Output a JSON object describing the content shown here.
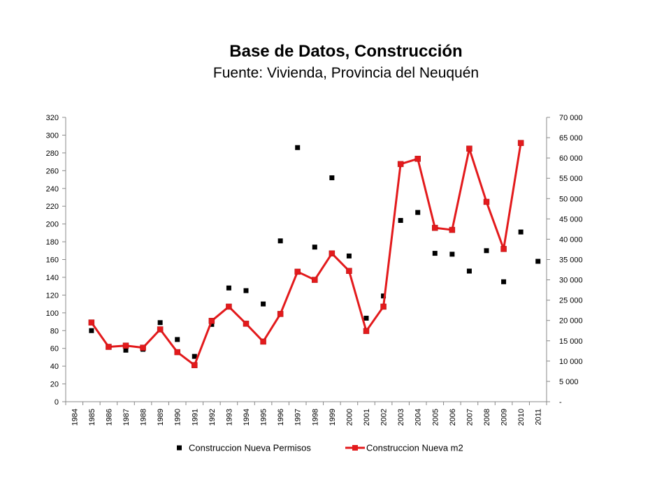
{
  "chart_data": {
    "type": "line",
    "title": "Base de Datos, Construcción",
    "subtitle": "Fuente: Vivienda, Provincia del Neuquén",
    "categories": [
      "1984",
      "1985",
      "1986",
      "1987",
      "1988",
      "1989",
      "1990",
      "1991",
      "1992",
      "1993",
      "1994",
      "1995",
      "1996",
      "1997",
      "1998",
      "1999",
      "2000",
      "2001",
      "2002",
      "2003",
      "2004",
      "2005",
      "2006",
      "2007",
      "2008",
      "2009",
      "2010",
      "2011"
    ],
    "y_left": {
      "ylim": [
        0,
        320
      ],
      "ticks": [
        "0",
        "20",
        "40",
        "60",
        "80",
        "100",
        "120",
        "140",
        "160",
        "180",
        "200",
        "220",
        "240",
        "260",
        "280",
        "300",
        "320"
      ]
    },
    "y_right": {
      "ylim": [
        0,
        70000
      ],
      "ticks": [
        "-",
        "5 000",
        "10 000",
        "15 000",
        "20 000",
        "25 000",
        "30 000",
        "35 000",
        "40 000",
        "45 000",
        "50 000",
        "55 000",
        "60 000",
        "65 000",
        "70 000"
      ]
    },
    "series": [
      {
        "name": "Construccion Nueva Permisos",
        "axis": "left",
        "style": "markers",
        "color": "#000000",
        "values": [
          null,
          80,
          62,
          58,
          59,
          89,
          70,
          51,
          87,
          128,
          125,
          110,
          181,
          286,
          174,
          252,
          164,
          94,
          119,
          204,
          213,
          167,
          166,
          147,
          170,
          135,
          191,
          158
        ]
      },
      {
        "name": "Construccion Nueva m2",
        "axis": "right",
        "style": "line-markers",
        "color": "#e31a1c",
        "values": [
          null,
          19500,
          13500,
          13800,
          13300,
          17800,
          12200,
          9000,
          19900,
          23400,
          19200,
          14800,
          21600,
          32000,
          30000,
          36500,
          32200,
          17400,
          23400,
          58500,
          59800,
          42800,
          42300,
          62300,
          49200,
          37600,
          63700,
          null
        ]
      }
    ],
    "legend": {
      "placement": "bottom"
    },
    "grid": false
  }
}
